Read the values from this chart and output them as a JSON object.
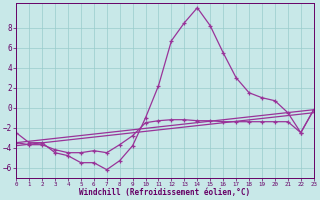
{
  "bg_color": "#c8e8e8",
  "line_color": "#993399",
  "grid_color": "#99cccc",
  "text_color": "#660066",
  "xlabel": "Windchill (Refroidissement éolien,°C)",
  "xlim": [
    0,
    23
  ],
  "ylim": [
    -7,
    10.5
  ],
  "xticks": [
    0,
    1,
    2,
    3,
    4,
    5,
    6,
    7,
    8,
    9,
    10,
    11,
    12,
    13,
    14,
    15,
    16,
    17,
    18,
    19,
    20,
    21,
    22,
    23
  ],
  "yticks": [
    -6,
    -4,
    -2,
    0,
    2,
    4,
    6,
    8
  ],
  "curve1_x": [
    0,
    1,
    2,
    3,
    4,
    5,
    6,
    7,
    8,
    9,
    10,
    11,
    12,
    13,
    14,
    15,
    16,
    17,
    18,
    19,
    20,
    21,
    22,
    23
  ],
  "curve1_y": [
    -2.5,
    -3.5,
    -3.5,
    -4.5,
    -4.8,
    -5.5,
    -5.5,
    -6.2,
    -5.3,
    -3.8,
    -1.0,
    2.2,
    6.7,
    8.5,
    10.0,
    8.2,
    5.5,
    3.0,
    1.5,
    1.0,
    0.7,
    -0.5,
    -2.5,
    -0.2
  ],
  "curve2_x": [
    0,
    1,
    2,
    3,
    4,
    5,
    6,
    7,
    8,
    9,
    10,
    11,
    12,
    13,
    14,
    15,
    16,
    17,
    18,
    19,
    20,
    21,
    22,
    23
  ],
  "curve2_y": [
    -3.5,
    -3.7,
    -3.7,
    -4.2,
    -4.5,
    -4.5,
    -4.3,
    -4.5,
    -3.7,
    -2.8,
    -1.5,
    -1.3,
    -1.2,
    -1.2,
    -1.3,
    -1.3,
    -1.4,
    -1.4,
    -1.4,
    -1.4,
    -1.4,
    -1.4,
    -2.5,
    -0.2
  ],
  "curve3_x": [
    0,
    23
  ],
  "curve3_y": [
    -3.5,
    -0.2
  ],
  "curve4_x": [
    0,
    23
  ],
  "curve4_y": [
    -3.8,
    -0.5
  ]
}
